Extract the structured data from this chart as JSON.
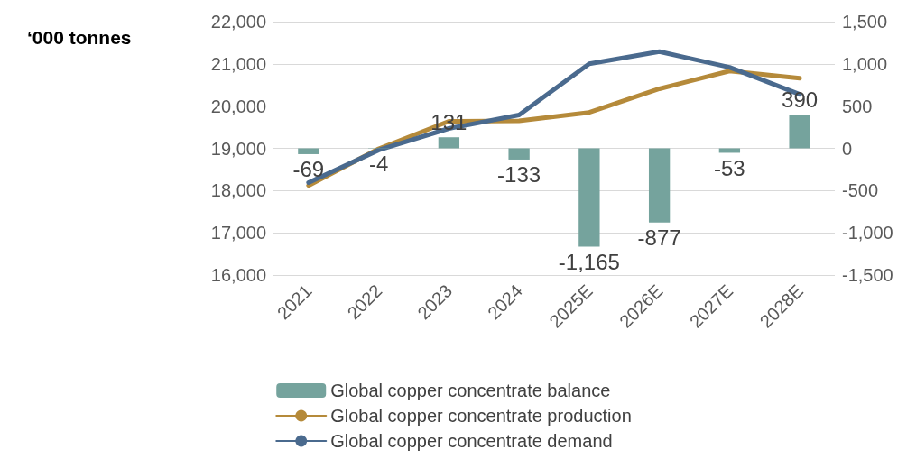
{
  "chart_data": {
    "type": "bar",
    "ylabel": "‘000 tonnes",
    "categories": [
      "2021",
      "2022",
      "2023",
      "2024",
      "2025E",
      "2026E",
      "2027E",
      "2028E"
    ],
    "series": [
      {
        "name": "Global copper concentrate balance",
        "axis": "y2",
        "color": "#75a39d",
        "values": [
          -69,
          -4,
          131,
          -133,
          -1165,
          -877,
          -53,
          390
        ],
        "value_labels": [
          "-69",
          "-4",
          "131",
          "-133",
          "-1,165",
          "-877",
          "-53",
          "390"
        ]
      },
      {
        "name": "Global copper concentrate production",
        "type": "line",
        "color": "#b58a3a",
        "values": [
          18120,
          18990,
          19640,
          19650,
          19850,
          20410,
          20830,
          20660
        ]
      },
      {
        "name": "Global copper concentrate demand",
        "type": "line",
        "color": "#4a6a8e",
        "values": [
          18190,
          18960,
          19470,
          19790,
          21000,
          21290,
          20920,
          20280
        ]
      }
    ],
    "ylim": [
      16000,
      22000
    ],
    "yticks": [
      {
        "value": 16000,
        "label": "16,000"
      },
      {
        "value": 17000,
        "label": "17,000"
      },
      {
        "value": 18000,
        "label": "18,000"
      },
      {
        "value": 19000,
        "label": "19,000"
      },
      {
        "value": 20000,
        "label": "20,000"
      },
      {
        "value": 21000,
        "label": "21,000"
      },
      {
        "value": 22000,
        "label": "22,000"
      }
    ],
    "y2lim": [
      -1500,
      1500
    ],
    "y2ticks": [
      {
        "value": -1500,
        "label": "-1,500"
      },
      {
        "value": -1000,
        "label": "-1,000"
      },
      -500,
      0,
      500,
      {
        "value": 1000,
        "label": "1,000"
      },
      {
        "value": 1500,
        "label": "1,500"
      }
    ],
    "grid": "y",
    "legend": "bottom",
    "marker": "none",
    "line_style": "solid"
  }
}
